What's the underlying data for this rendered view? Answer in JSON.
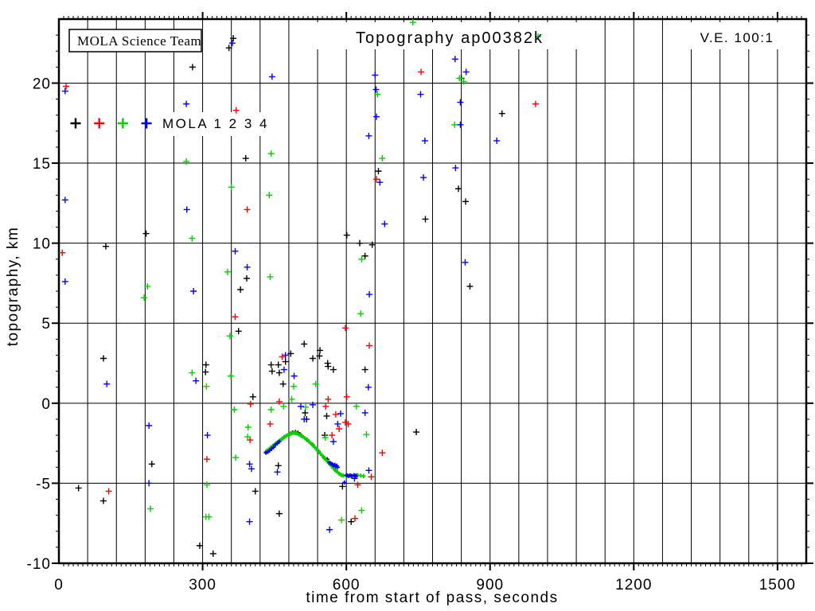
{
  "title": "Topography ap00382k",
  "annotations": {
    "credit": "MOLA Science Team",
    "ve": "V.E. 100:1"
  },
  "legend": {
    "label": "MOLA 1 2 3 4",
    "marker_colors": [
      "#000000",
      "#ff0000",
      "#00d200",
      "#0000ff"
    ]
  },
  "axes": {
    "xlabel": "time from start of pass, seconds",
    "ylabel": "topography, km",
    "xticks": [
      0,
      300,
      600,
      900,
      1200,
      1500
    ],
    "yticks": [
      20,
      15,
      10,
      5,
      0,
      -5,
      -10
    ],
    "xlim": [
      0,
      1560
    ],
    "ylim": [
      -10,
      24
    ],
    "xgrid_step": 60,
    "ygrid_step": 5,
    "x_minor_step": 10,
    "y_minor_step": 1,
    "grid_color": "#000000"
  },
  "chart_data": {
    "type": "scatter",
    "marker": "plus",
    "series": [
      {
        "name": "MOLA 1",
        "color": "#000000",
        "points": [
          [
            364,
            22.8
          ],
          [
            355,
            22.2
          ],
          [
            279,
            21.0
          ],
          [
            390,
            15.3
          ],
          [
            667,
            14.5
          ],
          [
            925,
            18.1
          ],
          [
            840,
            20.3
          ],
          [
            834,
            13.4
          ],
          [
            849,
            12.6
          ],
          [
            765,
            11.5
          ],
          [
            601,
            10.5
          ],
          [
            628,
            10.0
          ],
          [
            654,
            9.9
          ],
          [
            639,
            9.2
          ],
          [
            858,
            7.3
          ],
          [
            182,
            10.6
          ],
          [
            98,
            9.8
          ],
          [
            392,
            7.8
          ],
          [
            379,
            7.1
          ],
          [
            375,
            4.5
          ],
          [
            93,
            2.8
          ],
          [
            307,
            2.4
          ],
          [
            306,
            1.95
          ],
          [
            443,
            2.4
          ],
          [
            445,
            2.0
          ],
          [
            458,
            2.4
          ],
          [
            460,
            1.9
          ],
          [
            473,
            2.6
          ],
          [
            484,
            3.1
          ],
          [
            512,
            3.7
          ],
          [
            545,
            3.3
          ],
          [
            544,
            2.95
          ],
          [
            530,
            2.8
          ],
          [
            561,
            2.5
          ],
          [
            562,
            2.3
          ],
          [
            573,
            2.1
          ],
          [
            639,
            2.1
          ],
          [
            468,
            1.2
          ],
          [
            405,
            0.4
          ],
          [
            514,
            -0.6
          ],
          [
            517,
            -1.0
          ],
          [
            559,
            -0.8
          ],
          [
            555,
            -2.0
          ],
          [
            746,
            -1.8
          ],
          [
            458,
            -3.9
          ],
          [
            194,
            -3.8
          ],
          [
            592,
            -5.2
          ],
          [
            41,
            -5.3
          ],
          [
            93,
            -6.1
          ],
          [
            410,
            -5.5
          ],
          [
            460,
            -6.9
          ],
          [
            610,
            -7.4
          ],
          [
            294,
            -8.9
          ],
          [
            322,
            -9.4
          ]
        ],
        "profile": [
          [
            488,
            -1.82
          ],
          [
            494,
            -1.8
          ],
          [
            499,
            -1.84
          ],
          [
            504,
            -1.95
          ],
          [
            560,
            -3.5
          ]
        ]
      },
      {
        "name": "MOLA 2",
        "color": "#ff0000",
        "points": [
          [
            15,
            19.8
          ],
          [
            756,
            20.7
          ],
          [
            370,
            18.3
          ],
          [
            995,
            18.7
          ],
          [
            663,
            14.0
          ],
          [
            393,
            12.1
          ],
          [
            7,
            9.4
          ],
          [
            368,
            5.4
          ],
          [
            598,
            4.7
          ],
          [
            648,
            3.6
          ],
          [
            466,
            2.9
          ],
          [
            104,
            -5.5
          ],
          [
            309,
            -3.5
          ],
          [
            399,
            -2.3
          ],
          [
            441,
            -1.3
          ],
          [
            601,
            0.4
          ],
          [
            562,
            0.25
          ],
          [
            557,
            -0.2
          ],
          [
            460,
            0.1
          ],
          [
            400,
            -0.05
          ],
          [
            578,
            -0.7
          ],
          [
            598,
            -1.2
          ],
          [
            604,
            -1.3
          ],
          [
            585,
            -1.6
          ],
          [
            570,
            -2.0
          ],
          [
            675,
            -3.1
          ],
          [
            624,
            -5.1
          ],
          [
            652,
            -4.6
          ],
          [
            618,
            -7.2
          ]
        ],
        "profile": [
          [
            434,
            -3.0
          ],
          [
            446,
            -2.7
          ],
          [
            458,
            -2.42
          ],
          [
            470,
            -2.12
          ],
          [
            482,
            -1.92
          ],
          [
            494,
            -1.86
          ],
          [
            506,
            -2.02
          ],
          [
            518,
            -2.28
          ],
          [
            530,
            -2.6
          ],
          [
            542,
            -3.0
          ],
          [
            554,
            -3.42
          ],
          [
            566,
            -3.8
          ],
          [
            578,
            -4.2
          ],
          [
            602,
            -4.5
          ],
          [
            610,
            -4.55
          ],
          [
            622,
            -4.5
          ],
          [
            636,
            -4.55
          ]
        ]
      },
      {
        "name": "MOLA 3",
        "color": "#00d200",
        "points": [
          [
            739,
            23.8
          ],
          [
            1000,
            22.9
          ],
          [
            266,
            15.1
          ],
          [
            443,
            15.6
          ],
          [
            360,
            13.5
          ],
          [
            439,
            13.0
          ],
          [
            836,
            20.3
          ],
          [
            845,
            20.1
          ],
          [
            665,
            19.3
          ],
          [
            826,
            17.4
          ],
          [
            675,
            15.3
          ],
          [
            278,
            10.3
          ],
          [
            352,
            8.2
          ],
          [
            441,
            7.9
          ],
          [
            185,
            7.3
          ],
          [
            178,
            6.6
          ],
          [
            632,
            9.0
          ],
          [
            630,
            5.6
          ],
          [
            357,
            4.2
          ],
          [
            278,
            1.9
          ],
          [
            359,
            1.7
          ],
          [
            536,
            1.2
          ],
          [
            308,
            1.05
          ],
          [
            490,
            1.05
          ],
          [
            486,
            0.25
          ],
          [
            366,
            -0.4
          ],
          [
            443,
            -0.4
          ],
          [
            469,
            -0.2
          ],
          [
            515,
            -0.25
          ],
          [
            621,
            -0.2
          ],
          [
            395,
            -1.5
          ],
          [
            394,
            -2.1
          ],
          [
            556,
            -2.15
          ],
          [
            642,
            -1.95
          ],
          [
            369,
            -3.4
          ],
          [
            191,
            -6.6
          ],
          [
            309,
            -5.1
          ],
          [
            307,
            -7.1
          ],
          [
            313,
            -7.1
          ],
          [
            632,
            -6.7
          ],
          [
            590,
            -7.3
          ]
        ],
        "profile": [
          [
            432,
            -3.05
          ],
          [
            435,
            -2.95
          ],
          [
            438,
            -2.9
          ],
          [
            441,
            -2.8
          ],
          [
            444,
            -2.75
          ],
          [
            447,
            -2.65
          ],
          [
            450,
            -2.6
          ],
          [
            453,
            -2.5
          ],
          [
            456,
            -2.45
          ],
          [
            459,
            -2.4
          ],
          [
            462,
            -2.3
          ],
          [
            465,
            -2.25
          ],
          [
            468,
            -2.2
          ],
          [
            471,
            -2.1
          ],
          [
            474,
            -2.05
          ],
          [
            477,
            -2.0
          ],
          [
            480,
            -1.95
          ],
          [
            483,
            -1.9
          ],
          [
            486,
            -1.88
          ],
          [
            489,
            -1.85
          ],
          [
            492,
            -1.85
          ],
          [
            495,
            -1.87
          ],
          [
            498,
            -1.9
          ],
          [
            501,
            -1.95
          ],
          [
            504,
            -2.0
          ],
          [
            507,
            -2.05
          ],
          [
            510,
            -2.1
          ],
          [
            513,
            -2.18
          ],
          [
            516,
            -2.25
          ],
          [
            519,
            -2.3
          ],
          [
            522,
            -2.4
          ],
          [
            525,
            -2.48
          ],
          [
            528,
            -2.55
          ],
          [
            531,
            -2.65
          ],
          [
            534,
            -2.75
          ],
          [
            537,
            -2.85
          ],
          [
            540,
            -2.95
          ],
          [
            543,
            -3.05
          ],
          [
            546,
            -3.15
          ],
          [
            549,
            -3.25
          ],
          [
            552,
            -3.35
          ],
          [
            555,
            -3.45
          ],
          [
            558,
            -3.55
          ],
          [
            561,
            -3.65
          ],
          [
            564,
            -3.75
          ],
          [
            567,
            -3.85
          ],
          [
            570,
            -3.95
          ],
          [
            573,
            -4.05
          ],
          [
            576,
            -4.15
          ],
          [
            579,
            -4.25
          ],
          [
            582,
            -4.32
          ],
          [
            585,
            -4.4
          ],
          [
            588,
            -4.45
          ],
          [
            591,
            -4.5
          ],
          [
            594,
            -4.52
          ],
          [
            600,
            -4.55
          ],
          [
            606,
            -4.55
          ],
          [
            612,
            -4.55
          ],
          [
            618,
            -4.5
          ],
          [
            624,
            -4.5
          ],
          [
            630,
            -4.52
          ],
          [
            636,
            -4.55
          ]
        ]
      },
      {
        "name": "MOLA 4",
        "color": "#0000ff",
        "points": [
          [
            13,
            19.5
          ],
          [
            362,
            22.5
          ],
          [
            445,
            20.4
          ],
          [
            827,
            21.5
          ],
          [
            850,
            20.7
          ],
          [
            660,
            20.5
          ],
          [
            662,
            19.6
          ],
          [
            755,
            19.3
          ],
          [
            838,
            18.8
          ],
          [
            663,
            17.9
          ],
          [
            838,
            17.4
          ],
          [
            647,
            16.7
          ],
          [
            764,
            16.4
          ],
          [
            914,
            16.4
          ],
          [
            13,
            12.7
          ],
          [
            266,
            18.7
          ],
          [
            267,
            12.1
          ],
          [
            680,
            11.2
          ],
          [
            848,
            8.8
          ],
          [
            368,
            9.5
          ],
          [
            393,
            8.5
          ],
          [
            13,
            7.6
          ],
          [
            281,
            7.0
          ],
          [
            648,
            6.8
          ],
          [
            761,
            14.1
          ],
          [
            828,
            14.7
          ],
          [
            670,
            13.8
          ],
          [
            473,
            3.0
          ],
          [
            470,
            2.1
          ],
          [
            491,
            1.7
          ],
          [
            100,
            1.2
          ],
          [
            286,
            1.4
          ],
          [
            646,
            1.0
          ],
          [
            505,
            -0.2
          ],
          [
            530,
            -0.1
          ],
          [
            512,
            -1.0
          ],
          [
            588,
            -0.65
          ],
          [
            639,
            -0.6
          ],
          [
            582,
            -1.3
          ],
          [
            573,
            -2.4
          ],
          [
            456,
            -4.3
          ],
          [
            188,
            -1.4
          ],
          [
            310,
            -2.0
          ],
          [
            188,
            -5.0
          ],
          [
            398,
            -3.8
          ],
          [
            402,
            -4.1
          ],
          [
            398,
            -7.4
          ],
          [
            565,
            -7.9
          ],
          [
            617,
            -4.7
          ],
          [
            647,
            -4.2
          ]
        ],
        "profile": [
          [
            432,
            -3.1
          ],
          [
            436,
            -3.05
          ],
          [
            440,
            -2.95
          ],
          [
            444,
            -2.85
          ],
          [
            448,
            -2.75
          ],
          [
            452,
            -2.6
          ],
          [
            456,
            -2.5
          ],
          [
            460,
            -2.4
          ],
          [
            564,
            -3.7
          ],
          [
            567,
            -3.75
          ],
          [
            570,
            -3.8
          ],
          [
            572,
            -3.85
          ],
          [
            574,
            -3.9
          ],
          [
            576,
            -3.85
          ],
          [
            578,
            -3.95
          ],
          [
            580,
            -3.9
          ],
          [
            582,
            -4.0
          ],
          [
            596,
            -4.95
          ],
          [
            600,
            -4.5
          ],
          [
            604,
            -4.55
          ],
          [
            608,
            -4.5
          ],
          [
            612,
            -4.55
          ],
          [
            616,
            -4.5
          ],
          [
            620,
            -4.55
          ]
        ]
      }
    ]
  }
}
